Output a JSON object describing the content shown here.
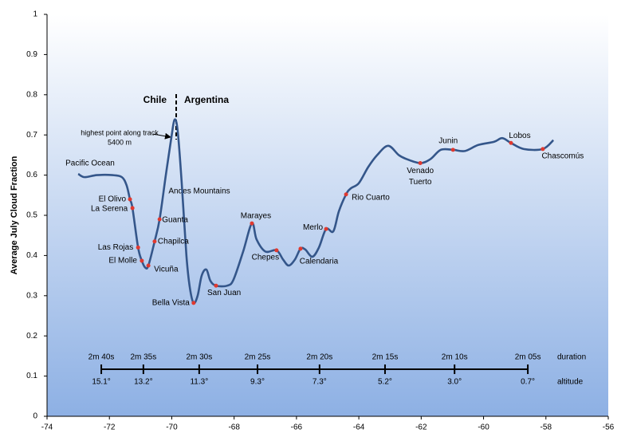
{
  "chart_data": {
    "type": "line",
    "y_label": "Average July Cloud Fraction",
    "xlim": [
      -74,
      -56
    ],
    "xticks": [
      -74,
      -72,
      -70,
      -68,
      -66,
      -64,
      -62,
      -60,
      -58,
      -56
    ],
    "ylim": [
      0,
      1
    ],
    "yticks": [
      0,
      0.1,
      0.2,
      0.3,
      0.4,
      0.5,
      0.6,
      0.7,
      0.8,
      0.9,
      1
    ],
    "series": [
      {
        "color": "#34568a",
        "x": [
          -73.0,
          -72.8,
          -72.4,
          -71.9,
          -71.6,
          -71.45,
          -71.34,
          -71.26,
          -71.08,
          -70.96,
          -70.85,
          -70.75,
          -70.55,
          -70.39,
          -70.19,
          -70.01,
          -69.91,
          -69.81,
          -69.68,
          -69.53,
          -69.42,
          -69.3,
          -69.17,
          -69.04,
          -68.89,
          -68.76,
          -68.58,
          -68.22,
          -68.02,
          -67.71,
          -67.43,
          -67.28,
          -67.0,
          -66.64,
          -66.43,
          -66.25,
          -66.05,
          -65.87,
          -65.72,
          -65.49,
          -65.28,
          -65.05,
          -64.82,
          -64.64,
          -64.41,
          -64.26,
          -64.0,
          -63.7,
          -63.41,
          -63.06,
          -62.72,
          -62.47,
          -62.03,
          -61.7,
          -61.37,
          -60.98,
          -60.6,
          -60.17,
          -59.66,
          -59.4,
          -59.12,
          -58.71,
          -58.1,
          -57.76
        ],
        "values": [
          0.603,
          0.595,
          0.6,
          0.6,
          0.595,
          0.575,
          0.54,
          0.518,
          0.42,
          0.387,
          0.37,
          0.375,
          0.435,
          0.49,
          0.6,
          0.695,
          0.738,
          0.71,
          0.58,
          0.4,
          0.32,
          0.282,
          0.3,
          0.35,
          0.365,
          0.337,
          0.325,
          0.325,
          0.34,
          0.41,
          0.48,
          0.44,
          0.41,
          0.413,
          0.39,
          0.375,
          0.39,
          0.417,
          0.415,
          0.397,
          0.42,
          0.466,
          0.46,
          0.51,
          0.552,
          0.567,
          0.58,
          0.62,
          0.65,
          0.673,
          0.65,
          0.64,
          0.63,
          0.64,
          0.663,
          0.663,
          0.66,
          0.675,
          0.683,
          0.692,
          0.68,
          0.665,
          0.665,
          0.687
        ]
      }
    ],
    "points_color": "#e0392f",
    "points": [
      {
        "label": "El Olivo",
        "x": -71.34,
        "y": 0.54
      },
      {
        "label": "La Serena",
        "x": -71.26,
        "y": 0.518
      },
      {
        "label": "Las Rojas",
        "x": -71.08,
        "y": 0.42
      },
      {
        "label": "El Molle",
        "x": -70.96,
        "y": 0.387
      },
      {
        "label": "Vicuña",
        "x": -70.75,
        "y": 0.375
      },
      {
        "label": "Chapilca",
        "x": -70.55,
        "y": 0.435
      },
      {
        "label": "Guanta",
        "x": -70.39,
        "y": 0.49
      },
      {
        "label": "Bella Vista",
        "x": -69.3,
        "y": 0.282
      },
      {
        "label": "San Juan",
        "x": -68.58,
        "y": 0.325
      },
      {
        "label": "Marayes",
        "x": -67.43,
        "y": 0.48
      },
      {
        "label": "Chepes",
        "x": -66.64,
        "y": 0.413
      },
      {
        "label": "Calendaria",
        "x": -65.87,
        "y": 0.417
      },
      {
        "label": "Merlo",
        "x": -65.05,
        "y": 0.466
      },
      {
        "label": "Rio Cuarto",
        "x": -64.41,
        "y": 0.552
      },
      {
        "label": "Venado Tuerto",
        "x": -62.03,
        "y": 0.63
      },
      {
        "label": "Junin",
        "x": -60.98,
        "y": 0.663
      },
      {
        "label": "Lobos",
        "x": -59.12,
        "y": 0.68
      },
      {
        "label": "Chascomús",
        "x": -58.1,
        "y": 0.665
      }
    ],
    "annotations": {
      "pacific": "Pacific Ocean",
      "andes": "Andes Mountains",
      "chile": "Chile",
      "argentina": "Argentina",
      "highest_1": "highest point along track",
      "highest_2": "5400 m"
    },
    "timeline": {
      "duration_label": "duration",
      "altitude_label": "altitude",
      "ticks": [
        {
          "x": -72.26,
          "duration": "2m 40s",
          "altitude": "15.1°"
        },
        {
          "x": -70.91,
          "duration": "2m 35s",
          "altitude": "13.2°"
        },
        {
          "x": -69.12,
          "duration": "2m 30s",
          "altitude": "11.3°"
        },
        {
          "x": -67.25,
          "duration": "2m 25s",
          "altitude": "9.3°"
        },
        {
          "x": -65.26,
          "duration": "2m 20s",
          "altitude": "7.3°"
        },
        {
          "x": -63.16,
          "duration": "2m 15s",
          "altitude": "5.2°"
        },
        {
          "x": -60.93,
          "duration": "2m 10s",
          "altitude": "3.0°"
        },
        {
          "x": -58.58,
          "duration": "2m 05s",
          "altitude": "0.7°"
        }
      ]
    }
  }
}
